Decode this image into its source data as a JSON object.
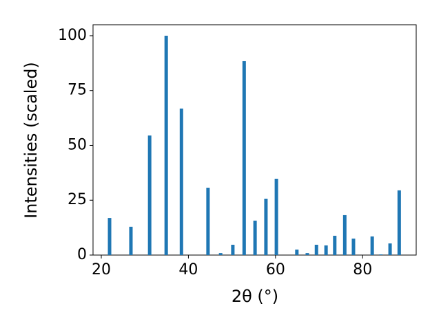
{
  "chart_data": {
    "type": "bar",
    "x": [
      21.9,
      26.8,
      31.1,
      34.9,
      38.4,
      44.5,
      47.4,
      50.2,
      52.8,
      55.3,
      57.8,
      60.2,
      64.9,
      67.3,
      69.4,
      71.6,
      73.6,
      75.9,
      77.9,
      82.2,
      84.2,
      86.3,
      88.4
    ],
    "values": [
      16.9,
      12.9,
      54.5,
      100,
      66.8,
      30.7,
      0.9,
      4.7,
      88.4,
      15.7,
      25.7,
      34.8,
      2.5,
      0.9,
      4.7,
      4.4,
      8.8,
      18.2,
      7.5,
      8.5,
      0.3,
      5.3,
      29.5
    ],
    "color": "#1f77b4",
    "xlim": [
      18.1,
      92.3
    ],
    "xticks": [
      20,
      40,
      60,
      80
    ],
    "ylim": [
      0,
      105
    ],
    "yticks": [
      0,
      25,
      50,
      75,
      100
    ],
    "xlabel": "2θ (°)",
    "ylabel": "Intensities (scaled)"
  }
}
